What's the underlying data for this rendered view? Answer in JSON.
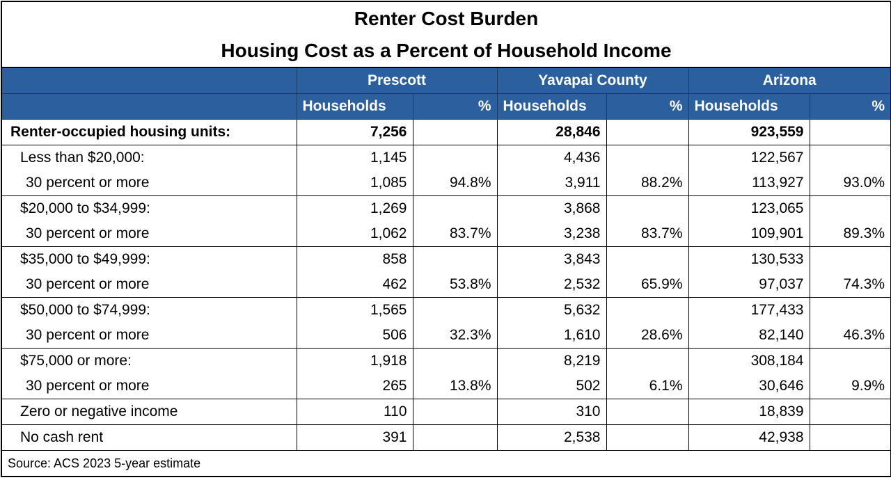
{
  "title": {
    "line1": "Renter Cost Burden",
    "line2": "Housing Cost as a Percent of Household Income"
  },
  "table": {
    "groups": [
      "Prescott",
      "Yavapai County",
      "Arizona"
    ],
    "subheaders": [
      "Households",
      "%"
    ],
    "rows": [
      {
        "label": "Renter-occupied housing units:",
        "values": [
          "7,256",
          null,
          "28,846",
          null,
          "923,559",
          null
        ]
      },
      {
        "label": "Less than $20,000:",
        "values": [
          "1,145",
          null,
          "4,436",
          null,
          "122,567",
          null
        ]
      },
      {
        "label": "30 percent or more",
        "values": [
          "1,085",
          "94.8%",
          "3,911",
          "88.2%",
          "113,927",
          "93.0%"
        ]
      },
      {
        "label": "$20,000 to $34,999:",
        "values": [
          "1,269",
          null,
          "3,868",
          null,
          "123,065",
          null
        ]
      },
      {
        "label": "30 percent or more",
        "values": [
          "1,062",
          "83.7%",
          "3,238",
          "83.7%",
          "109,901",
          "89.3%"
        ]
      },
      {
        "label": "$35,000 to $49,999:",
        "values": [
          "858",
          null,
          "3,843",
          null,
          "130,533",
          null
        ]
      },
      {
        "label": "30 percent or more",
        "values": [
          "462",
          "53.8%",
          "2,532",
          "65.9%",
          "97,037",
          "74.3%"
        ]
      },
      {
        "label": "$50,000 to $74,999:",
        "values": [
          "1,565",
          null,
          "5,632",
          null,
          "177,433",
          null
        ]
      },
      {
        "label": "30 percent or more",
        "values": [
          "506",
          "32.3%",
          "1,610",
          "28.6%",
          "82,140",
          "46.3%"
        ]
      },
      {
        "label": "$75,000 or more:",
        "values": [
          "1,918",
          null,
          "8,219",
          null,
          "308,184",
          null
        ]
      },
      {
        "label": "30 percent or more",
        "values": [
          "265",
          "13.8%",
          "502",
          "6.1%",
          "30,646",
          "9.9%"
        ]
      },
      {
        "label": "Zero or negative income",
        "values": [
          "110",
          null,
          "310",
          null,
          "18,839",
          null
        ]
      },
      {
        "label": "No cash rent",
        "values": [
          "391",
          null,
          "2,538",
          null,
          "42,938",
          null
        ]
      }
    ]
  },
  "source": "Source: ACS 2023 5-year estimate"
}
